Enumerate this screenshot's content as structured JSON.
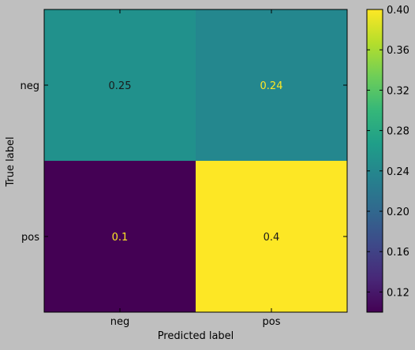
{
  "chart_data": {
    "type": "heatmap",
    "title": "",
    "xlabel": "Predicted label",
    "ylabel": "True label",
    "x_categories": [
      "neg",
      "pos"
    ],
    "y_categories": [
      "neg",
      "pos"
    ],
    "cells": [
      {
        "row": 0,
        "col": 0,
        "value": 0.25,
        "label": "0.25",
        "color": "#21918c",
        "text_color": "#1a1a1a"
      },
      {
        "row": 0,
        "col": 1,
        "value": 0.24,
        "label": "0.24",
        "color": "#24878e",
        "text_color": "#fde725"
      },
      {
        "row": 1,
        "col": 0,
        "value": 0.1,
        "label": "0.1",
        "color": "#440154",
        "text_color": "#fde725"
      },
      {
        "row": 1,
        "col": 1,
        "value": 0.4,
        "label": "0.4",
        "color": "#fde725",
        "text_color": "#1a1a1a"
      }
    ],
    "colorbar": {
      "colormap": "viridis",
      "range": [
        0.1,
        0.4
      ],
      "ticks": [
        0.12,
        0.16,
        0.2,
        0.24,
        0.28,
        0.32,
        0.36,
        0.4
      ],
      "tick_labels": [
        "0.12",
        "0.16",
        "0.20",
        "0.24",
        "0.28",
        "0.32",
        "0.36",
        "0.40"
      ]
    },
    "grid": false,
    "background_color": "#bfbfbf"
  }
}
